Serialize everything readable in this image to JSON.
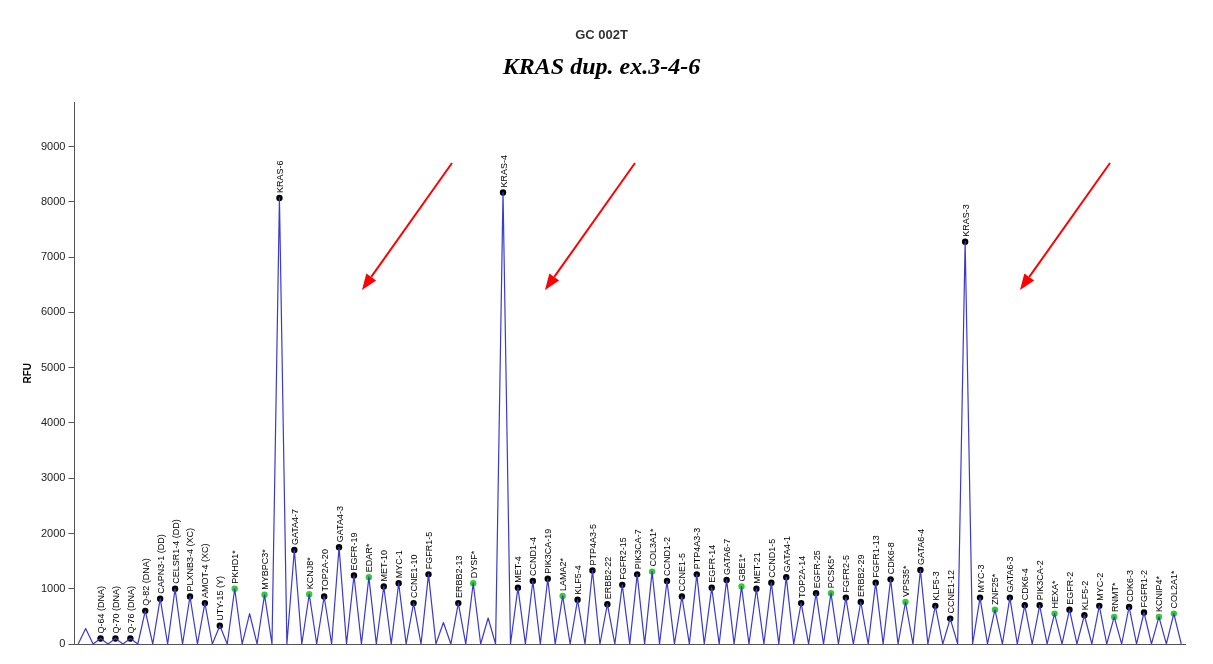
{
  "chart_data": {
    "type": "line",
    "title": "GC 002T",
    "subtitle": "KRAS dup. ex.3-4-6",
    "ylabel": "RFU",
    "categories": [
      null,
      null,
      null,
      "Q-64 (DNA)",
      null,
      "Q-70 (DNA)",
      null,
      "Q-76 (DNA)",
      null,
      "Q-82 (DNA)",
      null,
      "CAPN3-1 (DD)",
      null,
      "CELSR1-4 (DD)",
      null,
      "PLXNB3-4 (XC)",
      null,
      "AMOT-4 (XC)",
      null,
      "UTY-15 (Y)",
      null,
      "PKHD1*",
      null,
      null,
      null,
      "MYBPC3*",
      null,
      "KRAS-6",
      null,
      "GATA4-7",
      null,
      "KCNJ8*",
      null,
      "TOP2A-20",
      null,
      "GATA4-3",
      null,
      "EGFR-19",
      null,
      "EDAR*",
      null,
      "MET-10",
      null,
      "MYC-1",
      null,
      "CCNE1-10",
      null,
      "FGFR1-5",
      null,
      null,
      null,
      "ERBB2-13",
      null,
      "DYSF*",
      null,
      null,
      null,
      "KRAS-4",
      null,
      "MET-4",
      null,
      "CCND1-4",
      null,
      "PIK3CA-19",
      null,
      "LAMA2*",
      null,
      "KLF5-4",
      null,
      "PTP4A3-5",
      null,
      "ERBB2-22",
      null,
      "FGFR2-15",
      null,
      "PIK3CA-7",
      null,
      "COL3A1*",
      null,
      "CCND1-2",
      null,
      "CCNE1-5",
      null,
      "PTP4A3-3",
      null,
      "EGFR-14",
      null,
      "GATA6-7",
      null,
      "GBE1*",
      null,
      "MET-21",
      null,
      "CCND1-5",
      null,
      "GATA4-1",
      null,
      "TOP2A-14",
      null,
      "EGFR-25",
      null,
      "PCSK5*",
      null,
      "FGFR2-5",
      null,
      "ERBB2-29",
      null,
      "FGFR1-13",
      null,
      "CDK6-8",
      null,
      "VPS35*",
      null,
      "GATA6-4",
      null,
      "KLF5-3",
      null,
      "CCNE1-12",
      null,
      "KRAS-3",
      null,
      "MYC-3",
      null,
      "ZNF25*",
      null,
      "GATA6-3",
      null,
      "CDK6-4",
      null,
      "PIK3CA-2",
      null,
      "HEXA*",
      null,
      "EGFR-2",
      null,
      "KLF5-2",
      null,
      "MYC-2",
      null,
      "RNMT*",
      null,
      "CDK6-3",
      null,
      "FGFR1-2",
      null,
      "KCNIP4*",
      null,
      "COL2A1*",
      null
    ],
    "series": [
      {
        "color": "#3a3acc",
        "values": [
          0,
          280,
          0,
          100,
          0,
          100,
          0,
          100,
          0,
          600,
          0,
          820,
          0,
          1000,
          0,
          860,
          0,
          740,
          0,
          330,
          0,
          1000,
          0,
          550,
          0,
          890,
          0,
          8070,
          0,
          1700,
          0,
          900,
          0,
          860,
          0,
          1750,
          0,
          1240,
          0,
          1210,
          0,
          1040,
          0,
          1100,
          0,
          740,
          0,
          1260,
          0,
          390,
          0,
          740,
          0,
          1100,
          0,
          470,
          0,
          8170,
          0,
          1020,
          0,
          1140,
          0,
          1180,
          0,
          870,
          0,
          800,
          0,
          1330,
          0,
          720,
          0,
          1070,
          0,
          1260,
          0,
          1310,
          0,
          1140,
          0,
          860,
          0,
          1260,
          0,
          1020,
          0,
          1160,
          0,
          1040,
          0,
          1000,
          0,
          1110,
          0,
          1210,
          0,
          740,
          0,
          920,
          0,
          920,
          0,
          840,
          0,
          760,
          0,
          1110,
          0,
          1170,
          0,
          760,
          0,
          1340,
          0,
          690,
          0,
          460,
          0,
          7280,
          0,
          840,
          0,
          620,
          0,
          840,
          0,
          700,
          0,
          700,
          0,
          550,
          0,
          620,
          0,
          520,
          0,
          690,
          0,
          490,
          0,
          670,
          0,
          570,
          0,
          490,
          0,
          550,
          0
        ]
      },
      {
        "type": "scatter",
        "x": [
          "Q-64 (DNA)",
          "Q-70 (DNA)",
          "Q-76 (DNA)",
          "Q-82 (DNA)",
          "CAPN3-1 (DD)",
          "CELSR1-4 (DD)",
          "PLXNB3-4 (XC)",
          "AMOT-4 (XC)",
          "UTY-15 (Y)",
          "PKHD1*",
          "MYBPC3*",
          "KRAS-6",
          "GATA4-7",
          "KCNJ8*",
          "TOP2A-20",
          "GATA4-3",
          "EGFR-19",
          "EDAR*",
          "MET-10",
          "MYC-1",
          "CCNE1-10",
          "FGFR1-5",
          "ERBB2-13",
          "DYSF*",
          "KRAS-4",
          "MET-4",
          "CCND1-4",
          "PIK3CA-19",
          "LAMA2*",
          "KLF5-4",
          "PTP4A3-5",
          "ERBB2-22",
          "FGFR2-15",
          "PIK3CA-7",
          "COL3A1*",
          "CCND1-2",
          "CCNE1-5",
          "PTP4A3-3",
          "EGFR-14",
          "GATA6-7",
          "GBE1*",
          "MET-21",
          "CCND1-5",
          "GATA4-1",
          "TOP2A-14",
          "EGFR-25",
          "PCSK5*",
          "FGFR2-5",
          "ERBB2-29",
          "FGFR1-13",
          "CDK6-8",
          "VPS35*",
          "GATA6-4",
          "KLF5-3",
          "CCNE1-12",
          "KRAS-3",
          "MYC-3",
          "ZNF25*",
          "GATA6-3",
          "CDK6-4",
          "PIK3CA-2",
          "HEXA*",
          "EGFR-2",
          "KLF5-2",
          "MYC-2",
          "RNMT*",
          "CDK6-3",
          "FGFR1-2",
          "KCNIP4*",
          "COL2A1*"
        ],
        "values": [
          100,
          100,
          100,
          600,
          820,
          1000,
          860,
          740,
          330,
          1000,
          890,
          8070,
          1700,
          900,
          860,
          1750,
          1240,
          1210,
          1040,
          1100,
          740,
          1260,
          740,
          1100,
          8170,
          1020,
          1140,
          1180,
          870,
          800,
          1330,
          720,
          1070,
          1260,
          1310,
          1140,
          860,
          1260,
          1020,
          1160,
          1040,
          1000,
          1110,
          1210,
          740,
          920,
          920,
          840,
          760,
          1110,
          1170,
          760,
          1340,
          690,
          460,
          7280,
          840,
          620,
          840,
          700,
          700,
          550,
          620,
          520,
          690,
          490,
          670,
          570,
          490,
          550
        ],
        "colors": [
          "#000000",
          "#000000",
          "#000000",
          "#000000",
          "#000000",
          "#000000",
          "#000000",
          "#000000",
          "#000000",
          "#33cc33",
          "#33cc33",
          "#000000",
          "#000000",
          "#33cc33",
          "#000000",
          "#000000",
          "#000000",
          "#33cc33",
          "#000000",
          "#000000",
          "#000000",
          "#000000",
          "#000000",
          "#33cc33",
          "#000000",
          "#000000",
          "#000000",
          "#000000",
          "#33cc33",
          "#000000",
          "#000000",
          "#000000",
          "#000000",
          "#000000",
          "#33cc33",
          "#000000",
          "#000000",
          "#000000",
          "#000000",
          "#000000",
          "#33cc33",
          "#000000",
          "#000000",
          "#000000",
          "#000000",
          "#000000",
          "#33cc33",
          "#000000",
          "#000000",
          "#000000",
          "#000000",
          "#33cc33",
          "#000000",
          "#000000",
          "#000000",
          "#000000",
          "#000000",
          "#33cc33",
          "#000000",
          "#000000",
          "#000000",
          "#33cc33",
          "#000000",
          "#000000",
          "#000000",
          "#33cc33",
          "#000000",
          "#000000",
          "#33cc33",
          "#33cc33"
        ]
      }
    ],
    "ylim": [
      0,
      9800
    ],
    "yticks": [
      0,
      1000,
      2000,
      3000,
      4000,
      5000,
      6000,
      7000,
      8000,
      9000
    ],
    "line_style": "solid",
    "legend": false,
    "tick_labels": "y"
  }
}
